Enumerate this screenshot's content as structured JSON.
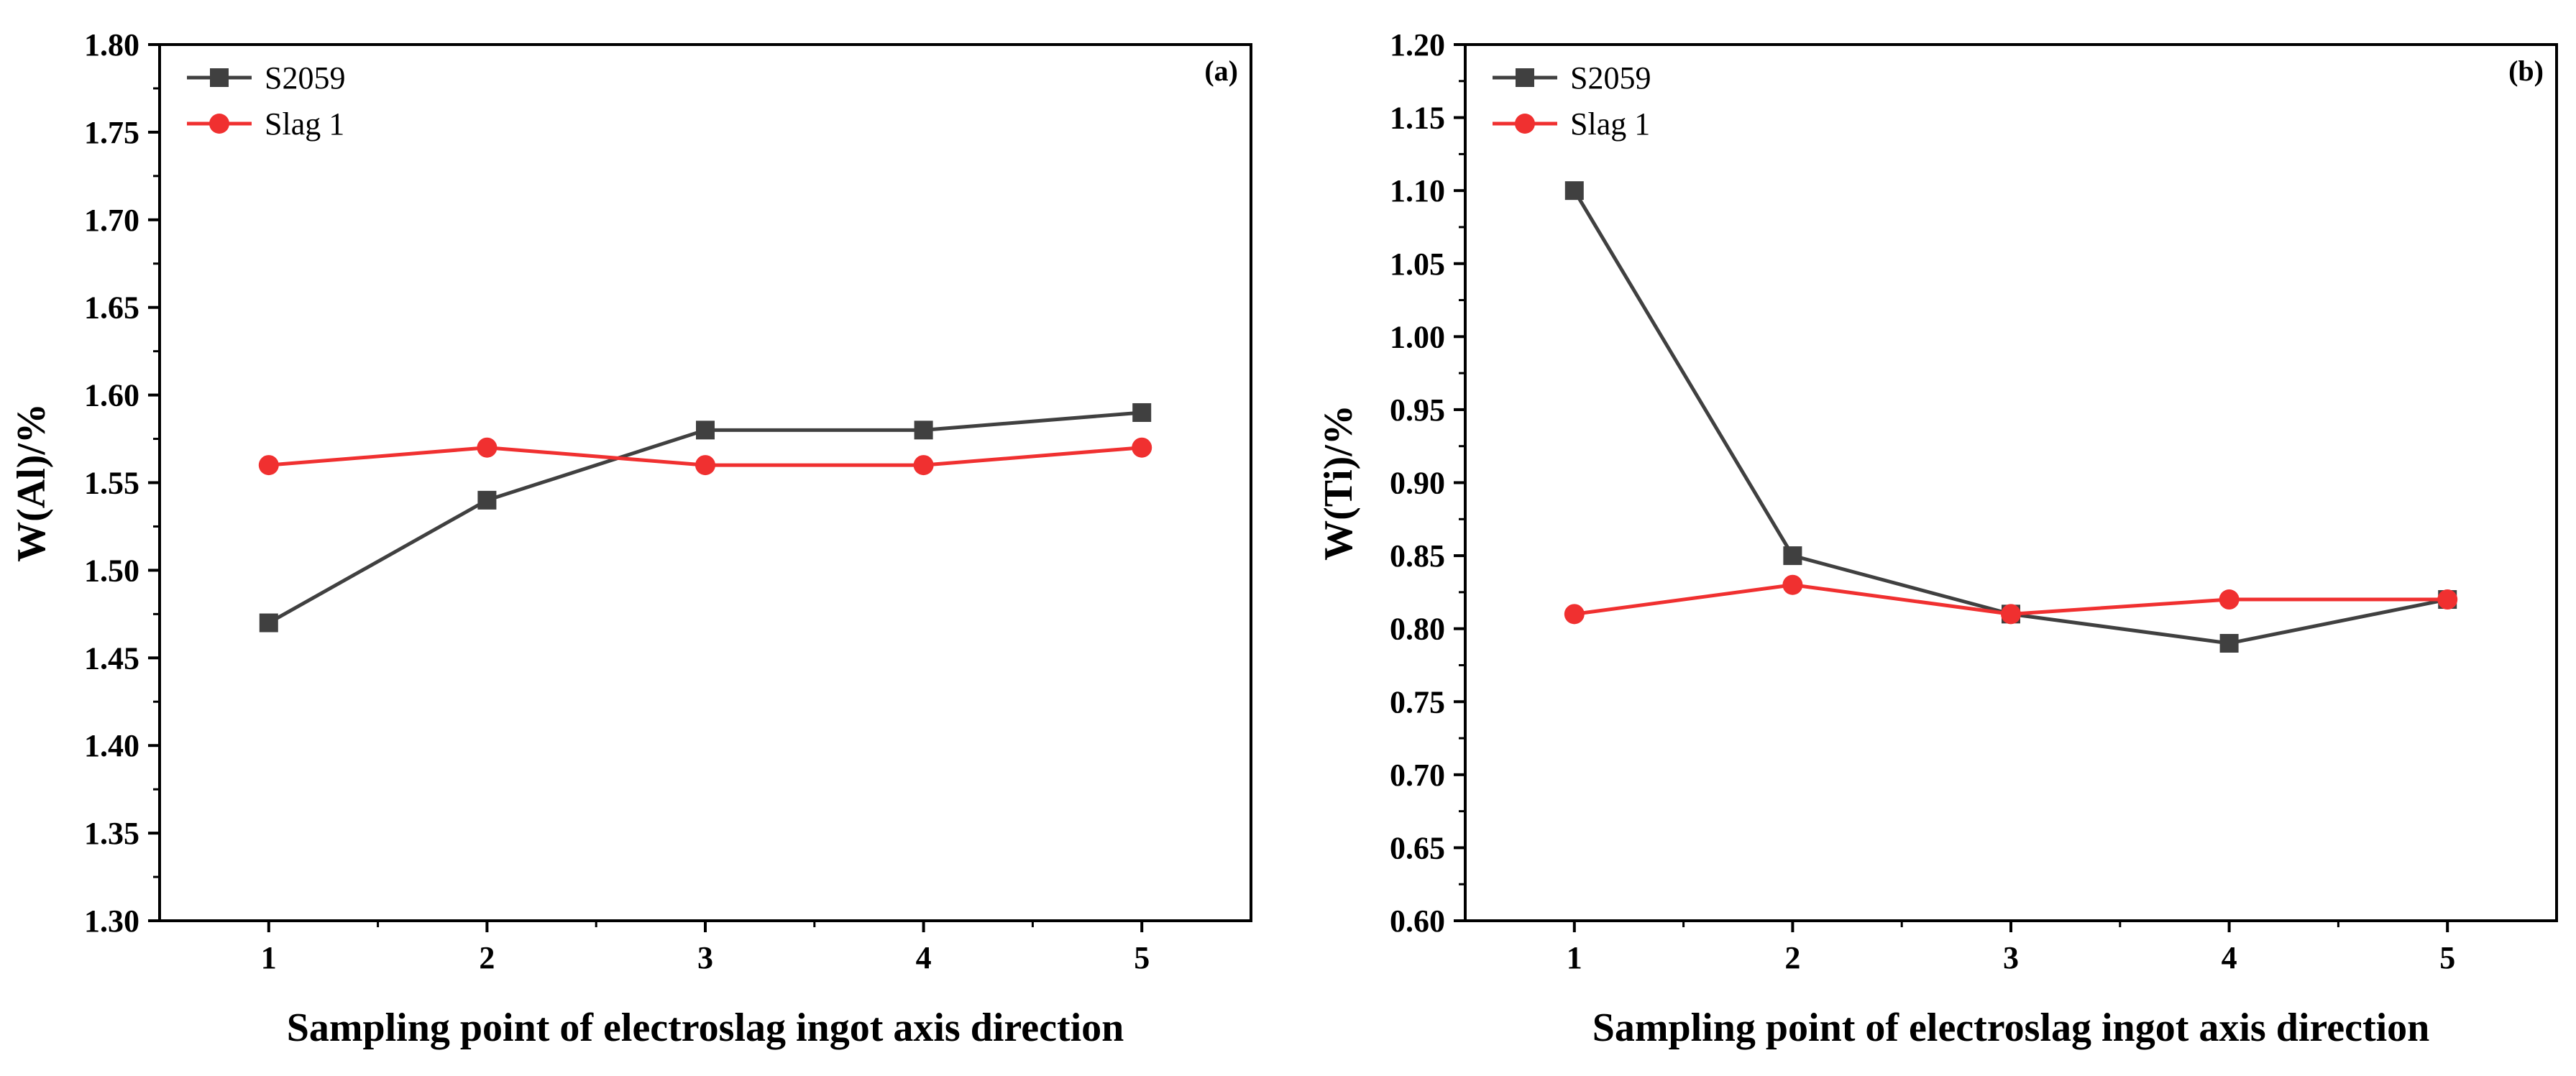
{
  "chart_data": [
    {
      "type": "line",
      "panel_label": "(a)",
      "xlabel": "Sampling point of electroslag ingot axis direction",
      "ylabel": "W(Al)/%",
      "x": [
        1,
        2,
        3,
        4,
        5
      ],
      "x_tick_labels": [
        "1",
        "2",
        "3",
        "4",
        "5"
      ],
      "xlim": [
        0.5,
        5.5
      ],
      "ylim": [
        1.3,
        1.8
      ],
      "y_ticks": [
        "1.30",
        "1.35",
        "1.40",
        "1.45",
        "1.50",
        "1.55",
        "1.60",
        "1.65",
        "1.70",
        "1.75",
        "1.80"
      ],
      "grid": false,
      "legend_position": "top-left",
      "series": [
        {
          "name": "S2059",
          "marker": "square",
          "color": "#404040",
          "values": [
            1.47,
            1.54,
            1.58,
            1.58,
            1.59
          ]
        },
        {
          "name": "Slag 1",
          "marker": "circle",
          "color": "#f03030",
          "values": [
            1.56,
            1.57,
            1.56,
            1.56,
            1.57
          ]
        }
      ]
    },
    {
      "type": "line",
      "panel_label": "(b)",
      "xlabel": "Sampling point of electroslag ingot axis direction",
      "ylabel": "W(Ti)/%",
      "x": [
        1,
        2,
        3,
        4,
        5
      ],
      "x_tick_labels": [
        "1",
        "2",
        "3",
        "4",
        "5"
      ],
      "xlim": [
        0.5,
        5.5
      ],
      "ylim": [
        0.6,
        1.2
      ],
      "y_ticks": [
        "0.60",
        "0.65",
        "0.70",
        "0.75",
        "0.80",
        "0.85",
        "0.90",
        "0.95",
        "1.00",
        "1.05",
        "1.10",
        "1.15",
        "1.20"
      ],
      "grid": false,
      "legend_position": "top-left",
      "series": [
        {
          "name": "S2059",
          "marker": "square",
          "color": "#404040",
          "values": [
            1.1,
            0.85,
            0.81,
            0.79,
            0.82
          ]
        },
        {
          "name": "Slag 1",
          "marker": "circle",
          "color": "#f03030",
          "values": [
            0.81,
            0.83,
            0.81,
            0.82,
            0.82
          ]
        }
      ]
    }
  ]
}
